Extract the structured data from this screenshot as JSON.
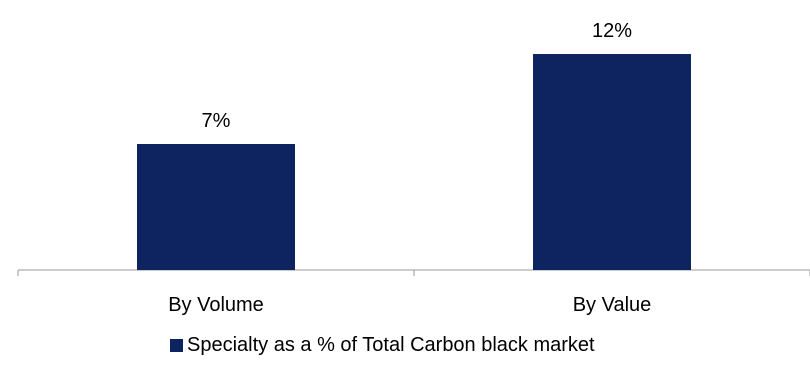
{
  "chart_data": {
    "type": "bar",
    "categories": [
      "By Volume",
      "By Value"
    ],
    "series": [
      {
        "name": "Specialty as a % of Total Carbon black market",
        "values": [
          7,
          12
        ],
        "data_labels": [
          "7%",
          "12%"
        ],
        "color": "#0d2461"
      }
    ],
    "title": "",
    "xlabel": "",
    "ylabel": "",
    "ylim": [
      0,
      14
    ],
    "grid": false,
    "legend": "bottom-center"
  }
}
